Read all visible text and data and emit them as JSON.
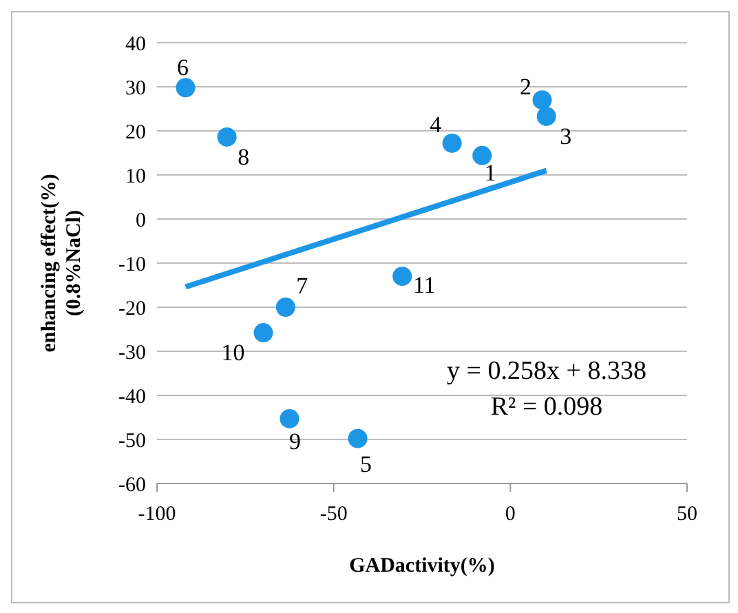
{
  "chart_data": {
    "type": "scatter",
    "xlabel": "GADactivity(%)",
    "ylabel": "enhancing effect(%)\n(0.8%NaCl)",
    "xlim": [
      -100,
      50
    ],
    "xticks": [
      -100,
      -50,
      0,
      50
    ],
    "ylim": [
      -60,
      40
    ],
    "yticks": [
      -60,
      -50,
      -40,
      -30,
      -20,
      -10,
      0,
      10,
      20,
      30,
      40
    ],
    "grid": "y",
    "marker": "circle",
    "series": [
      {
        "color": "#1e96e6",
        "x": [
          -8.0,
          9.0,
          10.2,
          -16.5,
          -43.2,
          -91.9,
          -63.6,
          -80.2,
          -62.5,
          -69.9,
          -30.6
        ],
        "values": [
          14.4,
          27.0,
          23.3,
          17.2,
          -49.8,
          29.8,
          -20.0,
          18.6,
          -45.3,
          -25.8,
          -13.0
        ]
      },
      {
        "type": "line",
        "color": "#1e96e6",
        "x": [
          -91.9,
          10.2
        ],
        "values": [
          -15.4,
          11.0
        ],
        "marker": "none"
      }
    ],
    "annotations": [
      {
        "text": "1",
        "x": -8.0,
        "y": 14.4
      },
      {
        "text": "2",
        "x": 9.0,
        "y": 27.0
      },
      {
        "text": "3",
        "x": 10.2,
        "y": 23.3
      },
      {
        "text": "4",
        "x": -16.5,
        "y": 17.2
      },
      {
        "text": "5",
        "x": -43.2,
        "y": -49.8
      },
      {
        "text": "6",
        "x": -91.9,
        "y": 29.8
      },
      {
        "text": "7",
        "x": -63.6,
        "y": -20.0
      },
      {
        "text": "8",
        "x": -80.2,
        "y": 18.6
      },
      {
        "text": "9",
        "x": -62.5,
        "y": -45.3
      },
      {
        "text": "10",
        "x": -69.9,
        "y": -25.8
      },
      {
        "text": "11",
        "x": -30.6,
        "y": -13.0
      },
      "y = 0.258x + 8.338",
      "R² = 0.098"
    ]
  }
}
